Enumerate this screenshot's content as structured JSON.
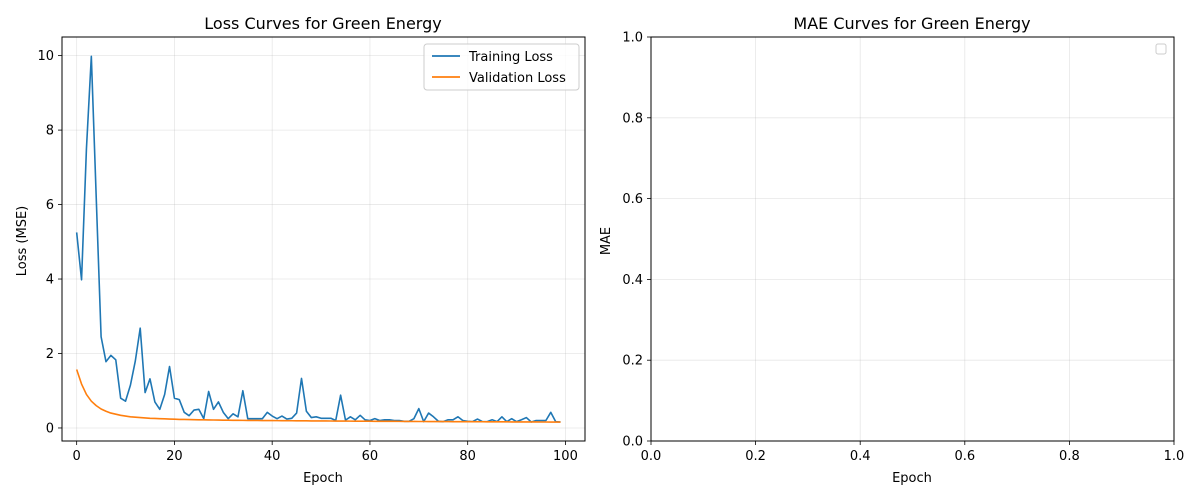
{
  "chart_data": [
    {
      "type": "line",
      "title": "Loss Curves for Green Energy",
      "xlabel": "Epoch",
      "ylabel": "Loss (MSE)",
      "xlim": [
        -3,
        104
      ],
      "ylim": [
        -0.35,
        10.5
      ],
      "xticks": [
        0,
        20,
        40,
        60,
        80,
        100
      ],
      "yticks": [
        0,
        2,
        4,
        6,
        8,
        10
      ],
      "grid": true,
      "legend": "top-right",
      "series": [
        {
          "name": "Training Loss",
          "color": "#1f77b4",
          "x": [
            0,
            1,
            2,
            3,
            4,
            5,
            6,
            7,
            8,
            9,
            10,
            11,
            12,
            13,
            14,
            15,
            16,
            17,
            18,
            19,
            20,
            21,
            22,
            23,
            24,
            25,
            26,
            27,
            28,
            29,
            30,
            31,
            32,
            33,
            34,
            35,
            36,
            37,
            38,
            39,
            40,
            41,
            42,
            43,
            44,
            45,
            46,
            47,
            48,
            49,
            50,
            51,
            52,
            53,
            54,
            55,
            56,
            57,
            58,
            59,
            60,
            61,
            62,
            63,
            64,
            65,
            66,
            67,
            68,
            69,
            70,
            71,
            72,
            73,
            74,
            75,
            76,
            77,
            78,
            79,
            80,
            81,
            82,
            83,
            84,
            85,
            86,
            87,
            88,
            89,
            90,
            91,
            92,
            93,
            94,
            95,
            96,
            97,
            98,
            99
          ],
          "values": [
            5.25,
            3.98,
            7.5,
            9.98,
            6.2,
            2.45,
            1.78,
            1.95,
            1.83,
            0.8,
            0.72,
            1.15,
            1.8,
            2.68,
            0.95,
            1.32,
            0.7,
            0.5,
            0.9,
            1.65,
            0.8,
            0.76,
            0.42,
            0.33,
            0.48,
            0.5,
            0.25,
            0.98,
            0.5,
            0.7,
            0.42,
            0.25,
            0.38,
            0.3,
            1.0,
            0.25,
            0.25,
            0.25,
            0.25,
            0.42,
            0.32,
            0.25,
            0.32,
            0.24,
            0.26,
            0.4,
            1.33,
            0.45,
            0.28,
            0.3,
            0.26,
            0.26,
            0.26,
            0.2,
            0.88,
            0.21,
            0.3,
            0.22,
            0.34,
            0.22,
            0.2,
            0.25,
            0.2,
            0.22,
            0.22,
            0.2,
            0.2,
            0.18,
            0.18,
            0.25,
            0.52,
            0.17,
            0.4,
            0.3,
            0.18,
            0.17,
            0.22,
            0.22,
            0.3,
            0.2,
            0.18,
            0.17,
            0.24,
            0.17,
            0.17,
            0.22,
            0.17,
            0.3,
            0.17,
            0.25,
            0.17,
            0.22,
            0.28,
            0.16,
            0.2,
            0.2,
            0.2,
            0.42,
            0.17,
            0.16
          ]
        },
        {
          "name": "Validation Loss",
          "color": "#ff7f0e",
          "x": [
            0,
            1,
            2,
            3,
            4,
            5,
            6,
            7,
            8,
            9,
            10,
            11,
            12,
            13,
            14,
            15,
            16,
            17,
            18,
            19,
            20,
            21,
            22,
            23,
            24,
            25,
            26,
            27,
            28,
            29,
            30,
            31,
            32,
            33,
            34,
            35,
            36,
            37,
            38,
            39,
            40,
            41,
            42,
            43,
            44,
            45,
            46,
            47,
            48,
            49,
            50,
            51,
            52,
            53,
            54,
            55,
            56,
            57,
            58,
            59,
            60,
            61,
            62,
            63,
            64,
            65,
            66,
            67,
            68,
            69,
            70,
            71,
            72,
            73,
            74,
            75,
            76,
            77,
            78,
            79,
            80,
            81,
            82,
            83,
            84,
            85,
            86,
            87,
            88,
            89,
            90,
            91,
            92,
            93,
            94,
            95,
            96,
            97,
            98,
            99
          ],
          "values": [
            1.57,
            1.18,
            0.9,
            0.72,
            0.6,
            0.51,
            0.45,
            0.4,
            0.37,
            0.34,
            0.32,
            0.3,
            0.29,
            0.28,
            0.27,
            0.26,
            0.255,
            0.25,
            0.245,
            0.24,
            0.235,
            0.23,
            0.228,
            0.225,
            0.222,
            0.22,
            0.218,
            0.216,
            0.214,
            0.212,
            0.21,
            0.208,
            0.206,
            0.205,
            0.204,
            0.203,
            0.202,
            0.201,
            0.2,
            0.199,
            0.198,
            0.197,
            0.196,
            0.195,
            0.194,
            0.193,
            0.192,
            0.191,
            0.19,
            0.19,
            0.189,
            0.188,
            0.187,
            0.186,
            0.186,
            0.185,
            0.184,
            0.183,
            0.183,
            0.182,
            0.181,
            0.18,
            0.18,
            0.179,
            0.178,
            0.178,
            0.177,
            0.176,
            0.176,
            0.175,
            0.174,
            0.174,
            0.173,
            0.172,
            0.172,
            0.171,
            0.171,
            0.17,
            0.169,
            0.169,
            0.168,
            0.168,
            0.167,
            0.167,
            0.166,
            0.165,
            0.165,
            0.164,
            0.164,
            0.163,
            0.163,
            0.162,
            0.162,
            0.161,
            0.161,
            0.16,
            0.16,
            0.159,
            0.159,
            0.158
          ]
        }
      ]
    },
    {
      "type": "line",
      "title": "MAE Curves for Green Energy",
      "xlabel": "Epoch",
      "ylabel": "MAE",
      "xlim": [
        0,
        1
      ],
      "ylim": [
        0,
        1
      ],
      "xticks": [
        0.0,
        0.2,
        0.4,
        0.6,
        0.8,
        1.0
      ],
      "yticks": [
        0.0,
        0.2,
        0.4,
        0.6,
        0.8,
        1.0
      ],
      "xtick_labels": [
        "0.0",
        "0.2",
        "0.4",
        "0.6",
        "0.8",
        "1.0"
      ],
      "ytick_labels": [
        "0.0",
        "0.2",
        "0.4",
        "0.6",
        "0.8",
        "1.0"
      ],
      "grid": true,
      "legend": "top-right",
      "series": []
    }
  ]
}
